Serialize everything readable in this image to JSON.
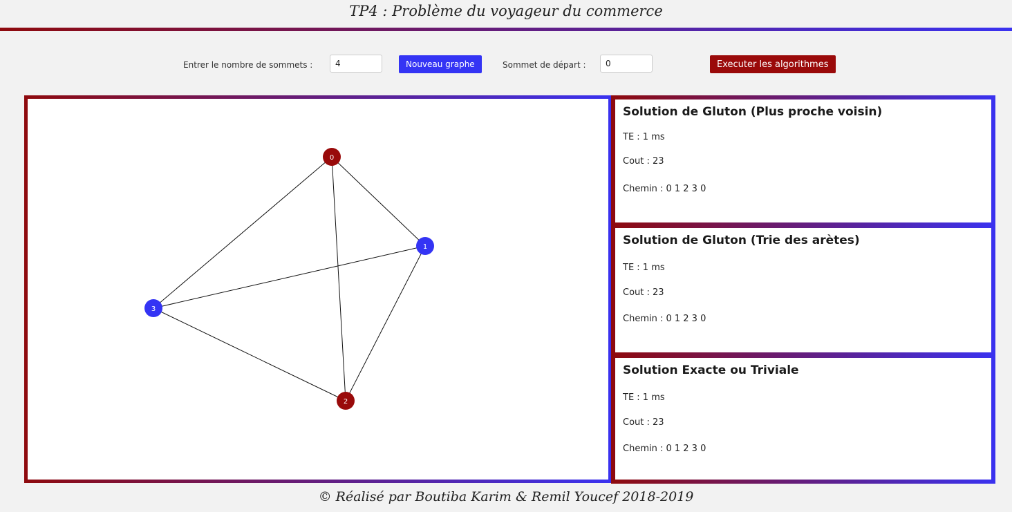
{
  "header": {
    "title": "TP4 : Problème du voyageur du commerce"
  },
  "toolbar": {
    "vertices_label": "Entrer le nombre de sommets :",
    "vertices_value": "4",
    "new_graph_label": "Nouveau graphe",
    "start_label": "Sommet de départ :",
    "start_value": "0",
    "run_label": "Executer les algorithmes"
  },
  "colors": {
    "red": "#990a0a",
    "blue": "#3434f4"
  },
  "graph": {
    "nodes": [
      {
        "id": "0",
        "color": "red"
      },
      {
        "id": "1",
        "color": "blue"
      },
      {
        "id": "2",
        "color": "red"
      },
      {
        "id": "3",
        "color": "blue"
      }
    ],
    "edges": [
      [
        "0",
        "1"
      ],
      [
        "0",
        "2"
      ],
      [
        "0",
        "3"
      ],
      [
        "1",
        "2"
      ],
      [
        "1",
        "3"
      ],
      [
        "2",
        "3"
      ]
    ]
  },
  "solutions": [
    {
      "title": "Solution de Gluton (Plus proche voisin)",
      "time": "TE : 1 ms",
      "cost": "Cout : 23",
      "path": "Chemin : 0 1 2 3 0"
    },
    {
      "title": "Solution de Gluton (Trie des arètes)",
      "time": "TE : 1 ms",
      "cost": "Cout : 23",
      "path": "Chemin : 0 1 2 3 0"
    },
    {
      "title": "Solution Exacte ou Triviale",
      "time": "TE : 1 ms",
      "cost": "Cout : 23",
      "path": "Chemin : 0 1 2 3 0"
    }
  ],
  "footer": {
    "text": "© Réalisé par Boutiba Karim & Remil Youcef 2018-2019"
  }
}
